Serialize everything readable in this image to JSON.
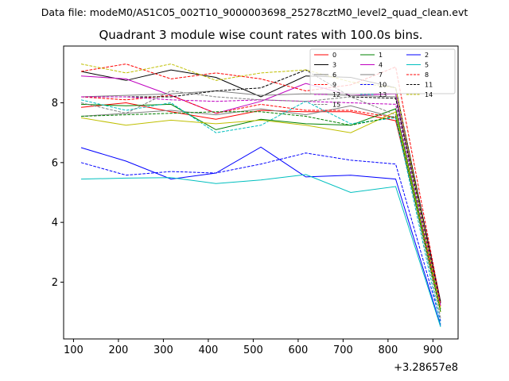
{
  "suptitle": "Data file: modeM0/AS1C05_002T10_9000003698_25278cztM0_level2_quad_clean.evt",
  "chart_data": {
    "type": "line",
    "title": "Quadrant 3 module wise count rates with 100.0s bins.",
    "xlabel": "",
    "ylabel": "",
    "x_offset_label": "+3.28657e8",
    "x": [
      117,
      217,
      317,
      417,
      517,
      617,
      717,
      817,
      917
    ],
    "xlim": [
      78,
      956
    ],
    "ylim": [
      0.1,
      9.9
    ],
    "xticks": [
      100,
      200,
      300,
      400,
      500,
      600,
      700,
      800,
      900
    ],
    "yticks": [
      2,
      4,
      6,
      8
    ],
    "grid": false,
    "legend_position": "top-right",
    "series": [
      {
        "name": "0",
        "color": "#ff0000",
        "dash": "solid",
        "values": [
          7.85,
          8.0,
          7.7,
          7.45,
          7.75,
          7.7,
          7.7,
          7.4,
          1.2
        ]
      },
      {
        "name": "1",
        "color": "#008000",
        "dash": "solid",
        "values": [
          7.95,
          7.9,
          7.95,
          7.1,
          7.45,
          7.3,
          7.25,
          7.8,
          1.1
        ]
      },
      {
        "name": "2",
        "color": "#0000ff",
        "dash": "solid",
        "values": [
          6.5,
          6.05,
          5.45,
          5.65,
          6.52,
          5.52,
          5.58,
          5.45,
          0.55
        ]
      },
      {
        "name": "3",
        "color": "#000000",
        "dash": "solid",
        "values": [
          9.05,
          8.75,
          9.1,
          8.85,
          8.2,
          8.9,
          8.85,
          8.5,
          1.35
        ]
      },
      {
        "name": "4",
        "color": "#bf00bf",
        "dash": "solid",
        "values": [
          8.9,
          8.8,
          8.25,
          7.65,
          8.05,
          8.65,
          8.25,
          8.3,
          1.3
        ]
      },
      {
        "name": "5",
        "color": "#00bfbf",
        "dash": "solid",
        "values": [
          5.45,
          5.48,
          5.5,
          5.3,
          5.42,
          5.6,
          5.0,
          5.2,
          0.5
        ]
      },
      {
        "name": "6",
        "color": "#7f7f7f",
        "dash": "solid",
        "values": [
          7.55,
          7.65,
          7.75,
          7.6,
          7.8,
          7.6,
          7.9,
          7.5,
          1.0
        ]
      },
      {
        "name": "7",
        "color": "#808080",
        "dash": "solid",
        "values": [
          8.2,
          8.25,
          8.3,
          8.4,
          8.25,
          8.3,
          8.25,
          8.2,
          1.3
        ]
      },
      {
        "name": "8",
        "color": "#ff0000",
        "dash": "dashed",
        "values": [
          9.05,
          9.3,
          8.8,
          9.0,
          8.8,
          8.4,
          8.6,
          9.2,
          1.3
        ]
      },
      {
        "name": "9",
        "color": "#ff0000",
        "dash": "dashed",
        "values": [
          8.2,
          8.1,
          8.25,
          7.65,
          7.95,
          7.75,
          7.75,
          7.5,
          1.2
        ]
      },
      {
        "name": "10",
        "color": "#0000ff",
        "dash": "dashed",
        "values": [
          6.0,
          5.58,
          5.7,
          5.65,
          5.95,
          6.32,
          6.08,
          5.95,
          0.7
        ]
      },
      {
        "name": "11",
        "color": "#000000",
        "dash": "dashed",
        "values": [
          8.2,
          8.2,
          8.2,
          8.4,
          8.5,
          9.1,
          8.2,
          8.15,
          1.3
        ]
      },
      {
        "name": "12",
        "color": "#bf00bf",
        "dash": "dashed",
        "values": [
          8.2,
          8.2,
          8.1,
          8.05,
          8.1,
          8.05,
          8.0,
          7.95,
          1.2
        ]
      },
      {
        "name": "13",
        "color": "#00bfbf",
        "dash": "dashed",
        "values": [
          8.1,
          7.75,
          8.0,
          7.0,
          7.25,
          8.05,
          7.3,
          7.5,
          0.6
        ]
      },
      {
        "name": "14",
        "color": "#bfbf00",
        "dash": "dashed",
        "values": [
          9.3,
          9.0,
          9.3,
          8.75,
          9.0,
          9.1,
          8.7,
          8.5,
          1.1
        ]
      },
      {
        "name": "15",
        "color": "#808080",
        "dash": "dashed",
        "values": [
          8.0,
          7.65,
          8.4,
          8.2,
          8.1,
          8.05,
          8.2,
          7.6,
          0.8
        ]
      },
      {
        "name": "",
        "color": "#bfbf00",
        "dash": "solid",
        "values": [
          7.5,
          7.25,
          7.42,
          7.3,
          7.42,
          7.25,
          7.0,
          7.7,
          1.0
        ]
      },
      {
        "name": "",
        "color": "#008000",
        "dash": "dashed",
        "values": [
          7.55,
          7.6,
          7.65,
          7.7,
          7.7,
          7.55,
          7.25,
          7.55,
          1.0
        ]
      }
    ]
  }
}
